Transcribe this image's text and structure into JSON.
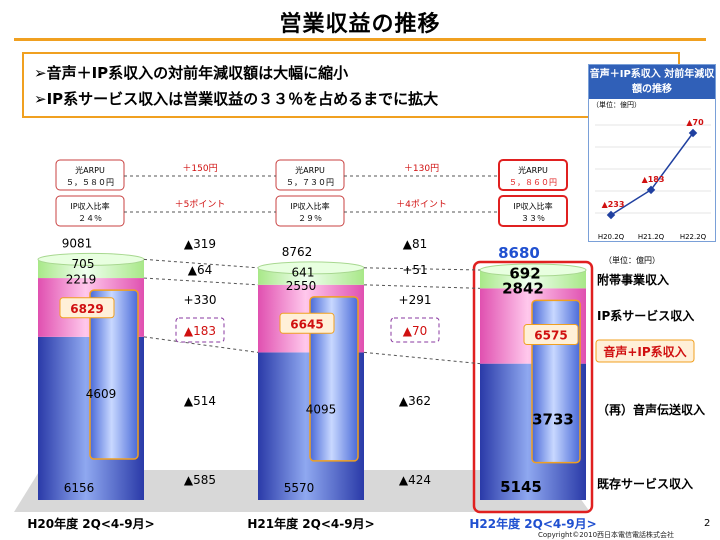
{
  "slide": {
    "title": "営業収益の推移",
    "bullets": [
      "➢音声＋IP系収入の対前年減収額は大幅に縮小",
      "➢IP系サービス収入は営業収益の３３％を占めるまでに拡大"
    ],
    "unit": "（単位：億円）",
    "copyright": "Copyright©2010西日本電信電話株式会社",
    "page": "2"
  },
  "info_boxes": {
    "arpu": [
      {
        "label": "光ARPU",
        "value": "５，５８０円"
      },
      {
        "label": "光ARPU",
        "value": "５，７３０円"
      },
      {
        "label": "光ARPU",
        "value": "５，８６０円"
      }
    ],
    "arpu_diffs": [
      "＋150円",
      "＋130円"
    ],
    "ratio": [
      {
        "label": "IP収入比率",
        "value": "２４％"
      },
      {
        "label": "IP収入比率",
        "value": "２９％"
      },
      {
        "label": "IP収入比率",
        "value": "３３％"
      }
    ],
    "ratio_diffs": [
      "＋5ポイント",
      "＋4ポイント"
    ]
  },
  "legend_labels": [
    "附帯事業収入",
    "IP系サービス収入",
    "音声+IP系収入",
    "（再）音声伝送収入",
    "既存サービス収入"
  ],
  "colors": {
    "accent": "#f0a020",
    "emphasis": "#e02020",
    "blue": "#3a55c8",
    "pink": "#f080c8",
    "green": "#c0f0a0",
    "purple": "#8a3aa0"
  },
  "chart_data": {
    "type": "bar",
    "stacked": true,
    "categories": [
      "H20年度 2Q<4-9月>",
      "H21年度 2Q<4-9月>",
      "H22年度 2Q<4-9月>"
    ],
    "series": [
      {
        "name": "既存サービス収入",
        "values": [
          6156,
          5570,
          5145
        ],
        "color": "#3a55c8"
      },
      {
        "name": "IP系サービス収入",
        "values": [
          2219,
          2550,
          2842
        ],
        "color": "#f080c8"
      },
      {
        "name": "附帯事業収入",
        "values": [
          705,
          641,
          692
        ],
        "color": "#c0f0a0"
      }
    ],
    "totals": [
      9081,
      8762,
      8680
    ],
    "voice_transmission": [
      4609,
      4095,
      3733
    ],
    "voice_plus_ip": [
      6829,
      6645,
      6575
    ],
    "changes": [
      {
        "total": "▲319",
        "incidental": "▲64",
        "ip": "+330",
        "voice_ip": "▲183",
        "voice": "▲514",
        "existing": "▲585"
      },
      {
        "total": "▲81",
        "incidental": "+51",
        "ip": "+291",
        "voice_ip": "▲70",
        "voice": "▲362",
        "existing": "▲424"
      }
    ],
    "inset": {
      "title": "音声＋IP系収入 対前年減収額の推移",
      "unit": "（単位：億円）",
      "categories": [
        "H20.2Q",
        "H21.2Q",
        "H22.2Q"
      ],
      "values": [
        -233,
        -183,
        -70
      ],
      "labels": [
        "▲233",
        "▲183",
        "▲70"
      ]
    }
  }
}
